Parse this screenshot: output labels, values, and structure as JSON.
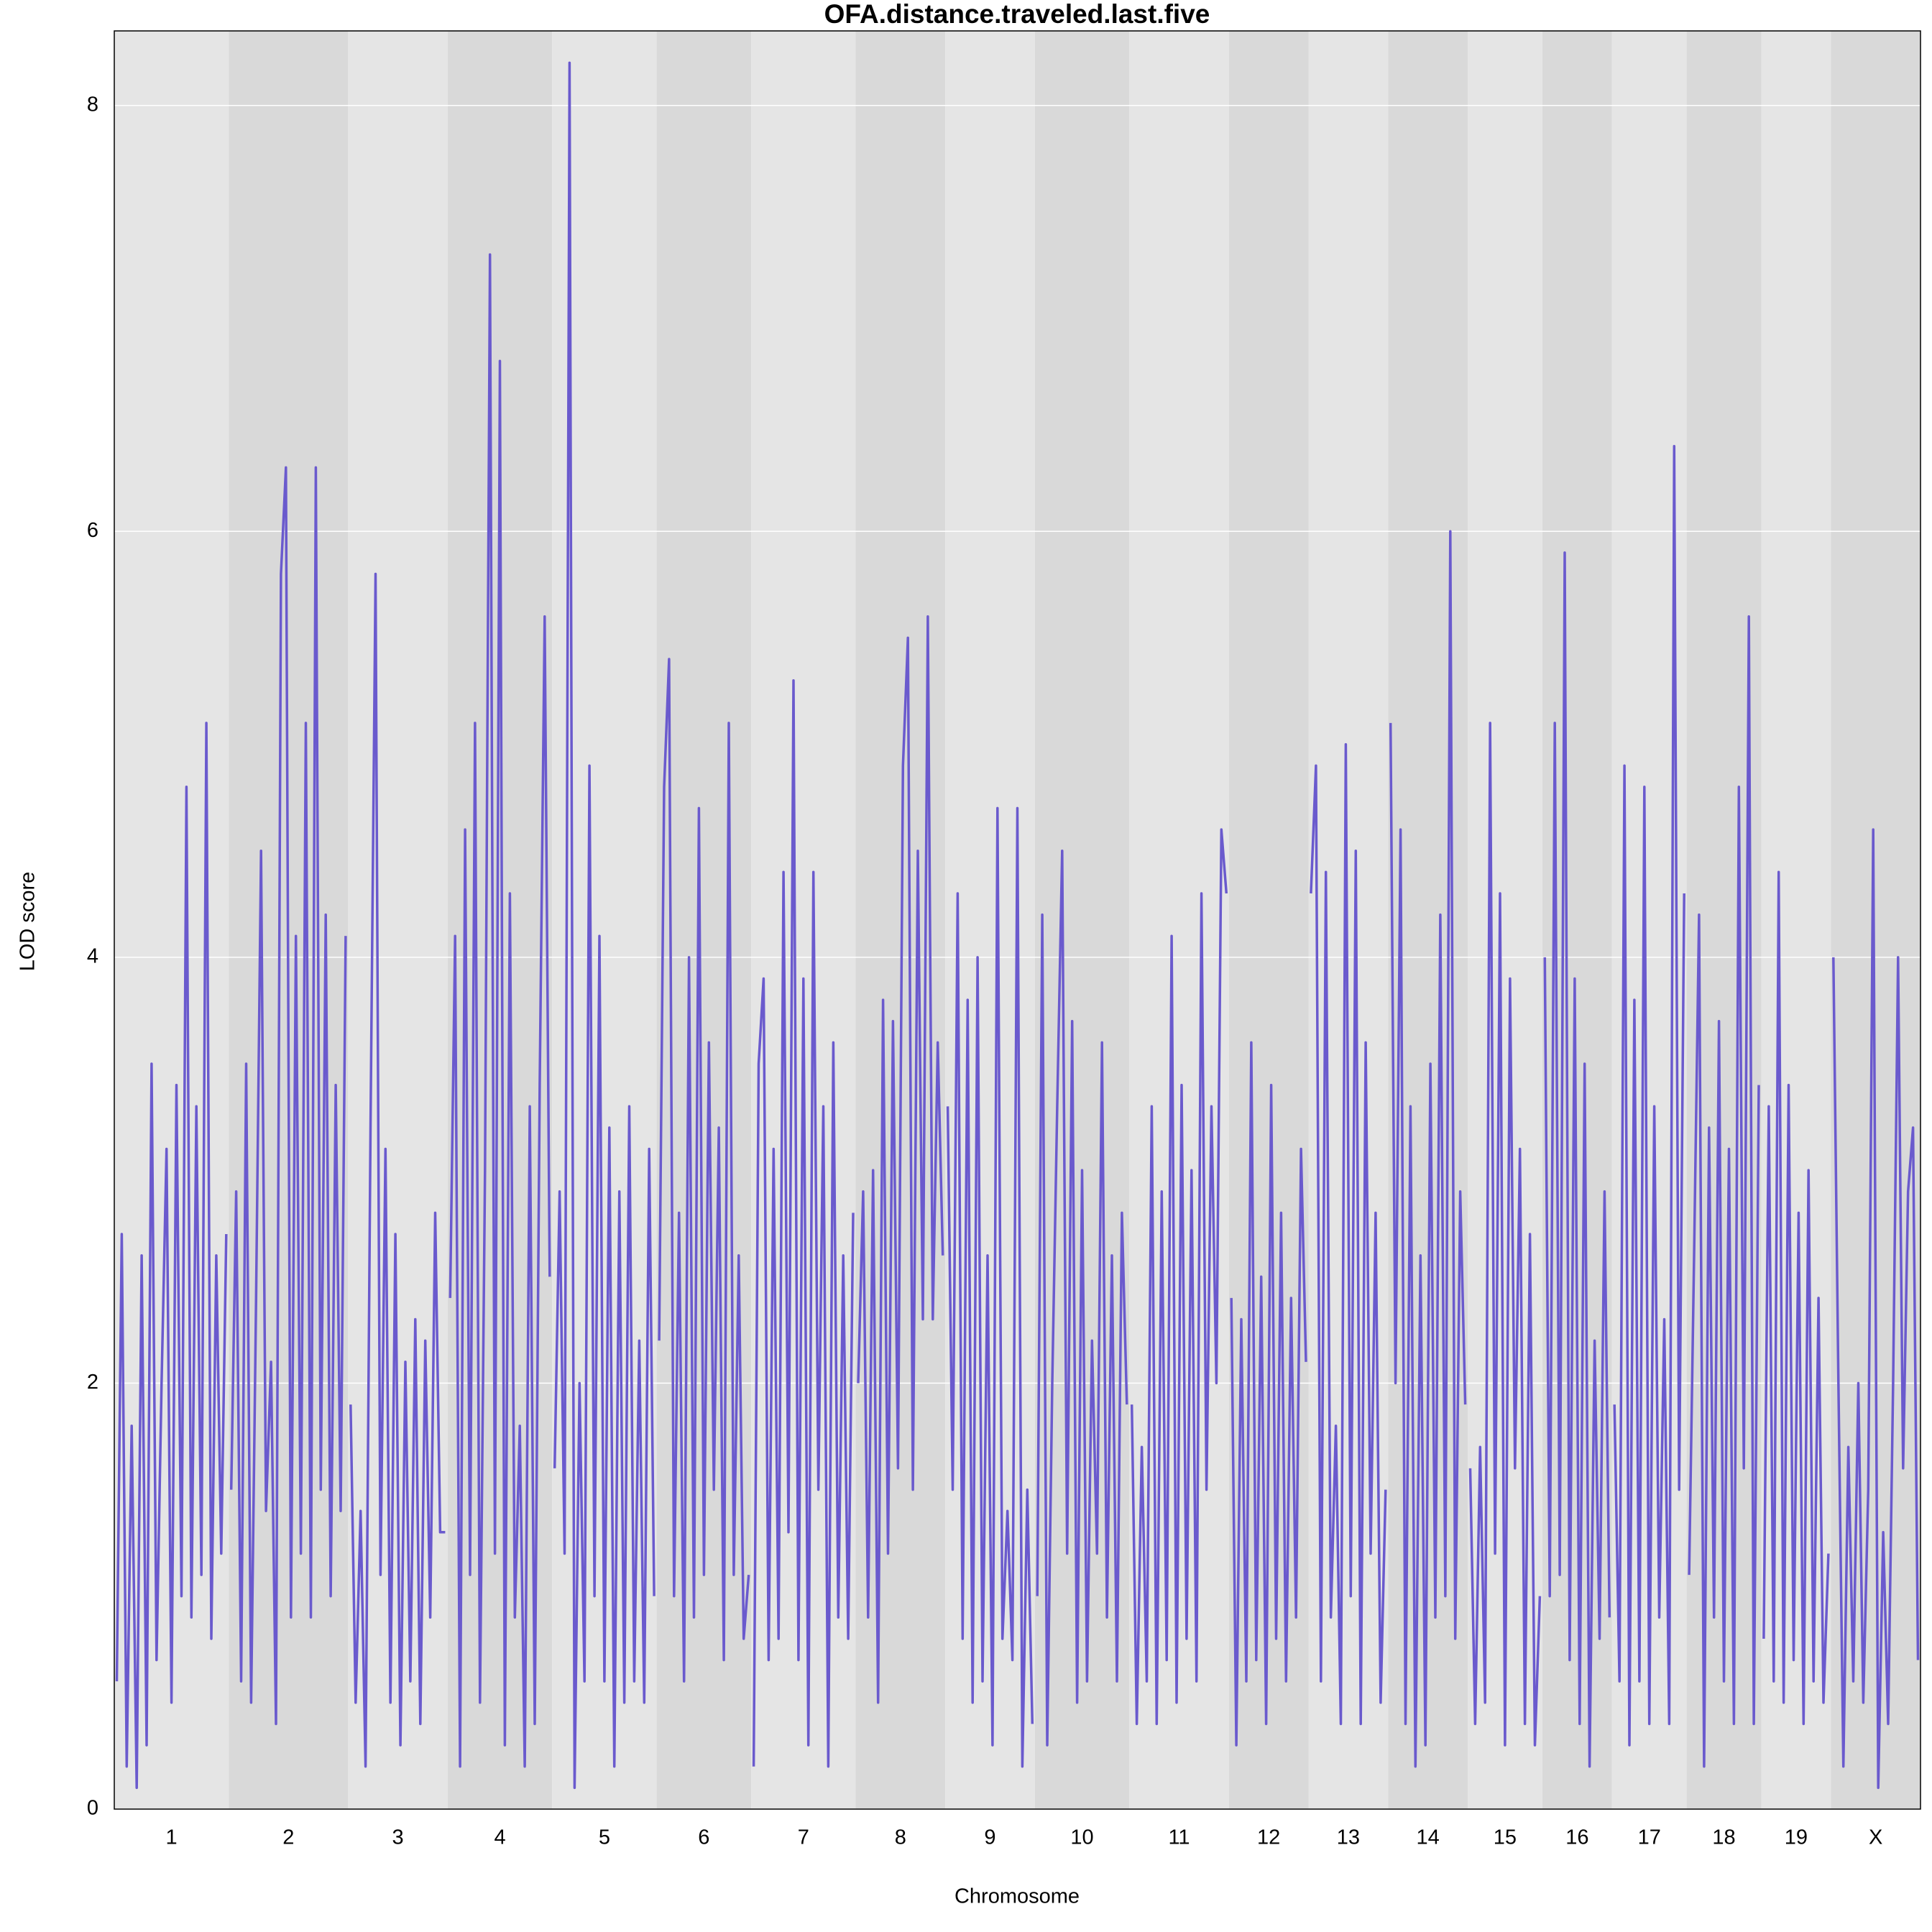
{
  "chart_data": {
    "type": "line",
    "title": "OFA.distance.traveled.last.five",
    "xlabel": "Chromosome",
    "ylabel": "LOD score",
    "color": "#6a5acd",
    "band_colors": [
      "#e5e5e5",
      "#d9d9d9"
    ],
    "grid": true,
    "ylim": [
      0,
      8.35
    ],
    "yticks": [
      0,
      2,
      4,
      6,
      8
    ],
    "chromosomes": [
      {
        "name": "1",
        "values": [
          0.6,
          2.7,
          0.2,
          1.8,
          0.1,
          2.6,
          0.3,
          3.5,
          0.7,
          2.0,
          3.1,
          0.5,
          3.4,
          1.0,
          4.8,
          0.9,
          3.3,
          1.1,
          5.1,
          0.8,
          2.6,
          1.2,
          2.7
        ]
      },
      {
        "name": "2",
        "values": [
          1.5,
          2.9,
          0.6,
          3.5,
          0.5,
          2.4,
          4.5,
          1.4,
          2.1,
          0.4,
          5.8,
          6.3,
          0.9,
          4.1,
          1.2,
          5.1,
          0.9,
          6.3,
          1.5,
          4.2,
          1.0,
          3.4,
          1.4,
          4.1
        ]
      },
      {
        "name": "3",
        "values": [
          1.9,
          0.5,
          1.4,
          0.2,
          3.2,
          5.8,
          1.1,
          3.1,
          0.5,
          2.7,
          0.3,
          2.1,
          0.6,
          2.3,
          0.4,
          2.2,
          0.9,
          2.8,
          1.3,
          1.3
        ]
      },
      {
        "name": "4",
        "values": [
          2.4,
          4.1,
          0.2,
          4.6,
          1.1,
          5.1,
          0.5,
          3.0,
          7.3,
          1.2,
          6.8,
          0.3,
          4.3,
          0.9,
          1.8,
          0.2,
          3.3,
          0.4,
          3.4,
          5.6,
          2.5
        ]
      },
      {
        "name": "5",
        "values": [
          1.6,
          2.9,
          1.2,
          8.2,
          0.1,
          2.0,
          0.6,
          4.9,
          1.0,
          4.1,
          0.6,
          3.2,
          0.2,
          2.9,
          0.5,
          3.3,
          0.6,
          2.2,
          0.5,
          3.1,
          1.0
        ]
      },
      {
        "name": "6",
        "values": [
          2.2,
          4.8,
          5.4,
          1.0,
          2.8,
          0.6,
          4.0,
          0.9,
          4.7,
          1.1,
          3.6,
          1.5,
          3.2,
          0.7,
          5.1,
          1.1,
          2.6,
          0.8,
          1.1
        ]
      },
      {
        "name": "7",
        "values": [
          0.2,
          3.5,
          3.9,
          0.7,
          3.1,
          0.8,
          4.4,
          1.3,
          5.3,
          0.7,
          3.9,
          0.3,
          4.4,
          1.5,
          3.3,
          0.2,
          3.6,
          0.9,
          2.6,
          0.8,
          2.8
        ]
      },
      {
        "name": "8",
        "values": [
          2.0,
          2.9,
          0.9,
          3.0,
          0.5,
          3.8,
          1.2,
          3.7,
          1.6,
          4.9,
          5.5,
          1.5,
          4.5,
          2.3,
          5.6,
          2.3,
          3.6,
          2.6
        ]
      },
      {
        "name": "9",
        "values": [
          3.3,
          1.5,
          4.3,
          0.8,
          3.8,
          0.5,
          4.0,
          0.6,
          2.6,
          0.3,
          4.7,
          0.8,
          1.4,
          0.7,
          4.7,
          0.2,
          1.5,
          0.4
        ]
      },
      {
        "name": "10",
        "values": [
          1.0,
          4.2,
          0.3,
          2.0,
          3.3,
          4.5,
          1.2,
          3.7,
          0.5,
          3.0,
          0.6,
          2.2,
          1.2,
          3.6,
          0.9,
          2.6,
          0.6,
          2.8,
          1.9
        ]
      },
      {
        "name": "11",
        "values": [
          1.9,
          0.4,
          1.7,
          0.6,
          3.3,
          0.4,
          2.9,
          0.7,
          4.1,
          0.5,
          3.4,
          0.8,
          3.0,
          0.6,
          4.3,
          1.5,
          3.3,
          2.0,
          4.6,
          4.3
        ]
      },
      {
        "name": "12",
        "values": [
          2.4,
          0.3,
          2.3,
          0.6,
          3.6,
          0.7,
          2.5,
          0.4,
          3.4,
          0.8,
          2.8,
          0.6,
          2.4,
          0.9,
          3.1,
          2.1
        ]
      },
      {
        "name": "13",
        "values": [
          4.3,
          4.9,
          0.6,
          4.4,
          0.9,
          1.8,
          0.4,
          5.0,
          1.0,
          4.5,
          0.4,
          3.6,
          1.2,
          2.8,
          0.5,
          1.5
        ]
      },
      {
        "name": "14",
        "values": [
          5.1,
          2.0,
          4.6,
          0.4,
          3.3,
          0.2,
          2.6,
          0.3,
          3.5,
          0.9,
          4.2,
          1.0,
          6.0,
          0.8,
          2.9,
          1.9
        ]
      },
      {
        "name": "15",
        "values": [
          1.6,
          0.4,
          1.7,
          0.5,
          5.1,
          1.2,
          4.3,
          0.3,
          3.9,
          1.6,
          3.1,
          0.4,
          2.7,
          0.3,
          1.0
        ]
      },
      {
        "name": "16",
        "values": [
          4.0,
          1.0,
          5.1,
          1.1,
          5.9,
          0.7,
          3.9,
          0.4,
          3.5,
          0.2,
          2.2,
          0.8,
          2.9,
          0.9
        ]
      },
      {
        "name": "17",
        "values": [
          1.9,
          0.6,
          4.9,
          0.3,
          3.8,
          0.6,
          4.8,
          0.4,
          3.3,
          0.9,
          2.3,
          0.4,
          6.4,
          1.5,
          4.3
        ]
      },
      {
        "name": "18",
        "values": [
          1.1,
          2.6,
          4.2,
          0.2,
          3.2,
          0.9,
          3.7,
          0.6,
          3.1,
          0.4,
          4.8,
          1.6,
          5.6,
          0.4,
          3.4
        ]
      },
      {
        "name": "19",
        "values": [
          0.8,
          3.3,
          0.6,
          4.4,
          0.5,
          3.4,
          0.7,
          2.8,
          0.4,
          3.0,
          0.6,
          2.4,
          0.5,
          1.2
        ]
      },
      {
        "name": "X",
        "values": [
          4.0,
          2.0,
          0.2,
          1.7,
          0.6,
          2.0,
          0.5,
          1.5,
          4.6,
          0.1,
          1.3,
          0.4,
          2.0,
          4.0,
          1.6,
          2.9,
          3.2,
          0.7
        ]
      }
    ]
  }
}
